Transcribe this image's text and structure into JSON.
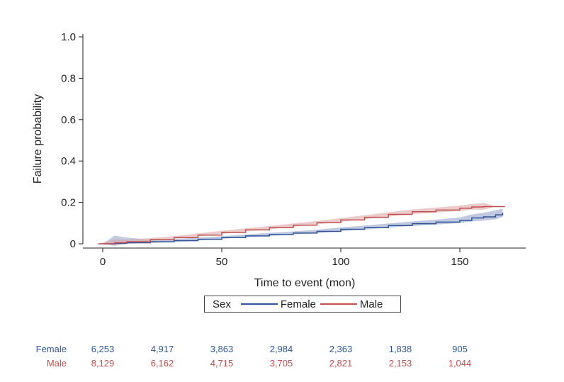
{
  "chart_data": {
    "type": "line",
    "subtype": "kaplan-meier cumulative failure with confidence bands",
    "xlabel": "Time to event (mon)",
    "ylabel": "Failure probability",
    "xlim": [
      0,
      175
    ],
    "ylim": [
      0,
      1.0
    ],
    "x_ticks": [
      0,
      50,
      100,
      150
    ],
    "x_tick_labels": [
      "0",
      "50",
      "100",
      "150"
    ],
    "y_ticks": [
      0,
      0.2,
      0.4,
      0.6,
      0.8,
      1.0
    ],
    "y_tick_labels": [
      "0",
      "0.2",
      "0.4",
      "0.6",
      "0.8",
      "1.0"
    ],
    "grid": false,
    "legend": {
      "title": "Sex",
      "position": "bottom-center",
      "entries": [
        "Female",
        "Male"
      ]
    },
    "series": [
      {
        "name": "Female",
        "color": "#2f5597",
        "band_color": "#8e9cc8",
        "x": [
          0,
          5,
          10,
          20,
          30,
          40,
          50,
          60,
          70,
          80,
          90,
          100,
          110,
          120,
          130,
          140,
          150,
          155,
          160,
          165,
          168
        ],
        "y": [
          0.0,
          0.002,
          0.005,
          0.01,
          0.015,
          0.022,
          0.03,
          0.038,
          0.045,
          0.052,
          0.06,
          0.07,
          0.078,
          0.088,
          0.097,
          0.105,
          0.113,
          0.125,
          0.13,
          0.14,
          0.15
        ],
        "lower": [
          0.0,
          -0.01,
          0.0,
          0.004,
          0.009,
          0.016,
          0.024,
          0.031,
          0.038,
          0.045,
          0.052,
          0.061,
          0.069,
          0.078,
          0.086,
          0.093,
          0.1,
          0.108,
          0.112,
          0.118,
          0.13
        ],
        "upper": [
          0.0,
          0.04,
          0.03,
          0.02,
          0.023,
          0.03,
          0.037,
          0.045,
          0.053,
          0.06,
          0.068,
          0.079,
          0.088,
          0.098,
          0.108,
          0.117,
          0.127,
          0.142,
          0.15,
          0.162,
          0.17
        ]
      },
      {
        "name": "Male",
        "color": "#c0504d",
        "band_color": "#dba0a3",
        "x": [
          -2,
          5,
          10,
          20,
          30,
          40,
          50,
          60,
          70,
          80,
          90,
          100,
          110,
          120,
          130,
          140,
          150,
          155,
          160,
          165,
          169
        ],
        "y": [
          0.0,
          0.005,
          0.01,
          0.02,
          0.03,
          0.042,
          0.055,
          0.067,
          0.078,
          0.09,
          0.102,
          0.115,
          0.128,
          0.142,
          0.155,
          0.163,
          0.172,
          0.178,
          0.18,
          0.18,
          0.18
        ],
        "lower": [
          0.0,
          -0.005,
          0.002,
          0.014,
          0.024,
          0.035,
          0.048,
          0.06,
          0.07,
          0.082,
          0.094,
          0.106,
          0.119,
          0.132,
          0.144,
          0.151,
          0.159,
          0.165,
          0.165,
          0.18,
          0.18
        ],
        "upper": [
          0.0,
          0.02,
          0.02,
          0.028,
          0.037,
          0.05,
          0.063,
          0.075,
          0.086,
          0.098,
          0.11,
          0.124,
          0.138,
          0.152,
          0.166,
          0.175,
          0.185,
          0.192,
          0.198,
          0.18,
          0.18
        ]
      }
    ],
    "number_at_risk": {
      "times": [
        0,
        25,
        50,
        75,
        100,
        125,
        150
      ],
      "rows": [
        {
          "label": "Female",
          "color": "#2f5597",
          "values": [
            "6,253",
            "4,917",
            "3,863",
            "2,984",
            "2,363",
            "1,838",
            "905"
          ]
        },
        {
          "label": "Male",
          "color": "#c0504d",
          "values": [
            "8,129",
            "6,162",
            "4,715",
            "3,705",
            "2,821",
            "2,153",
            "1,044"
          ]
        }
      ]
    }
  }
}
